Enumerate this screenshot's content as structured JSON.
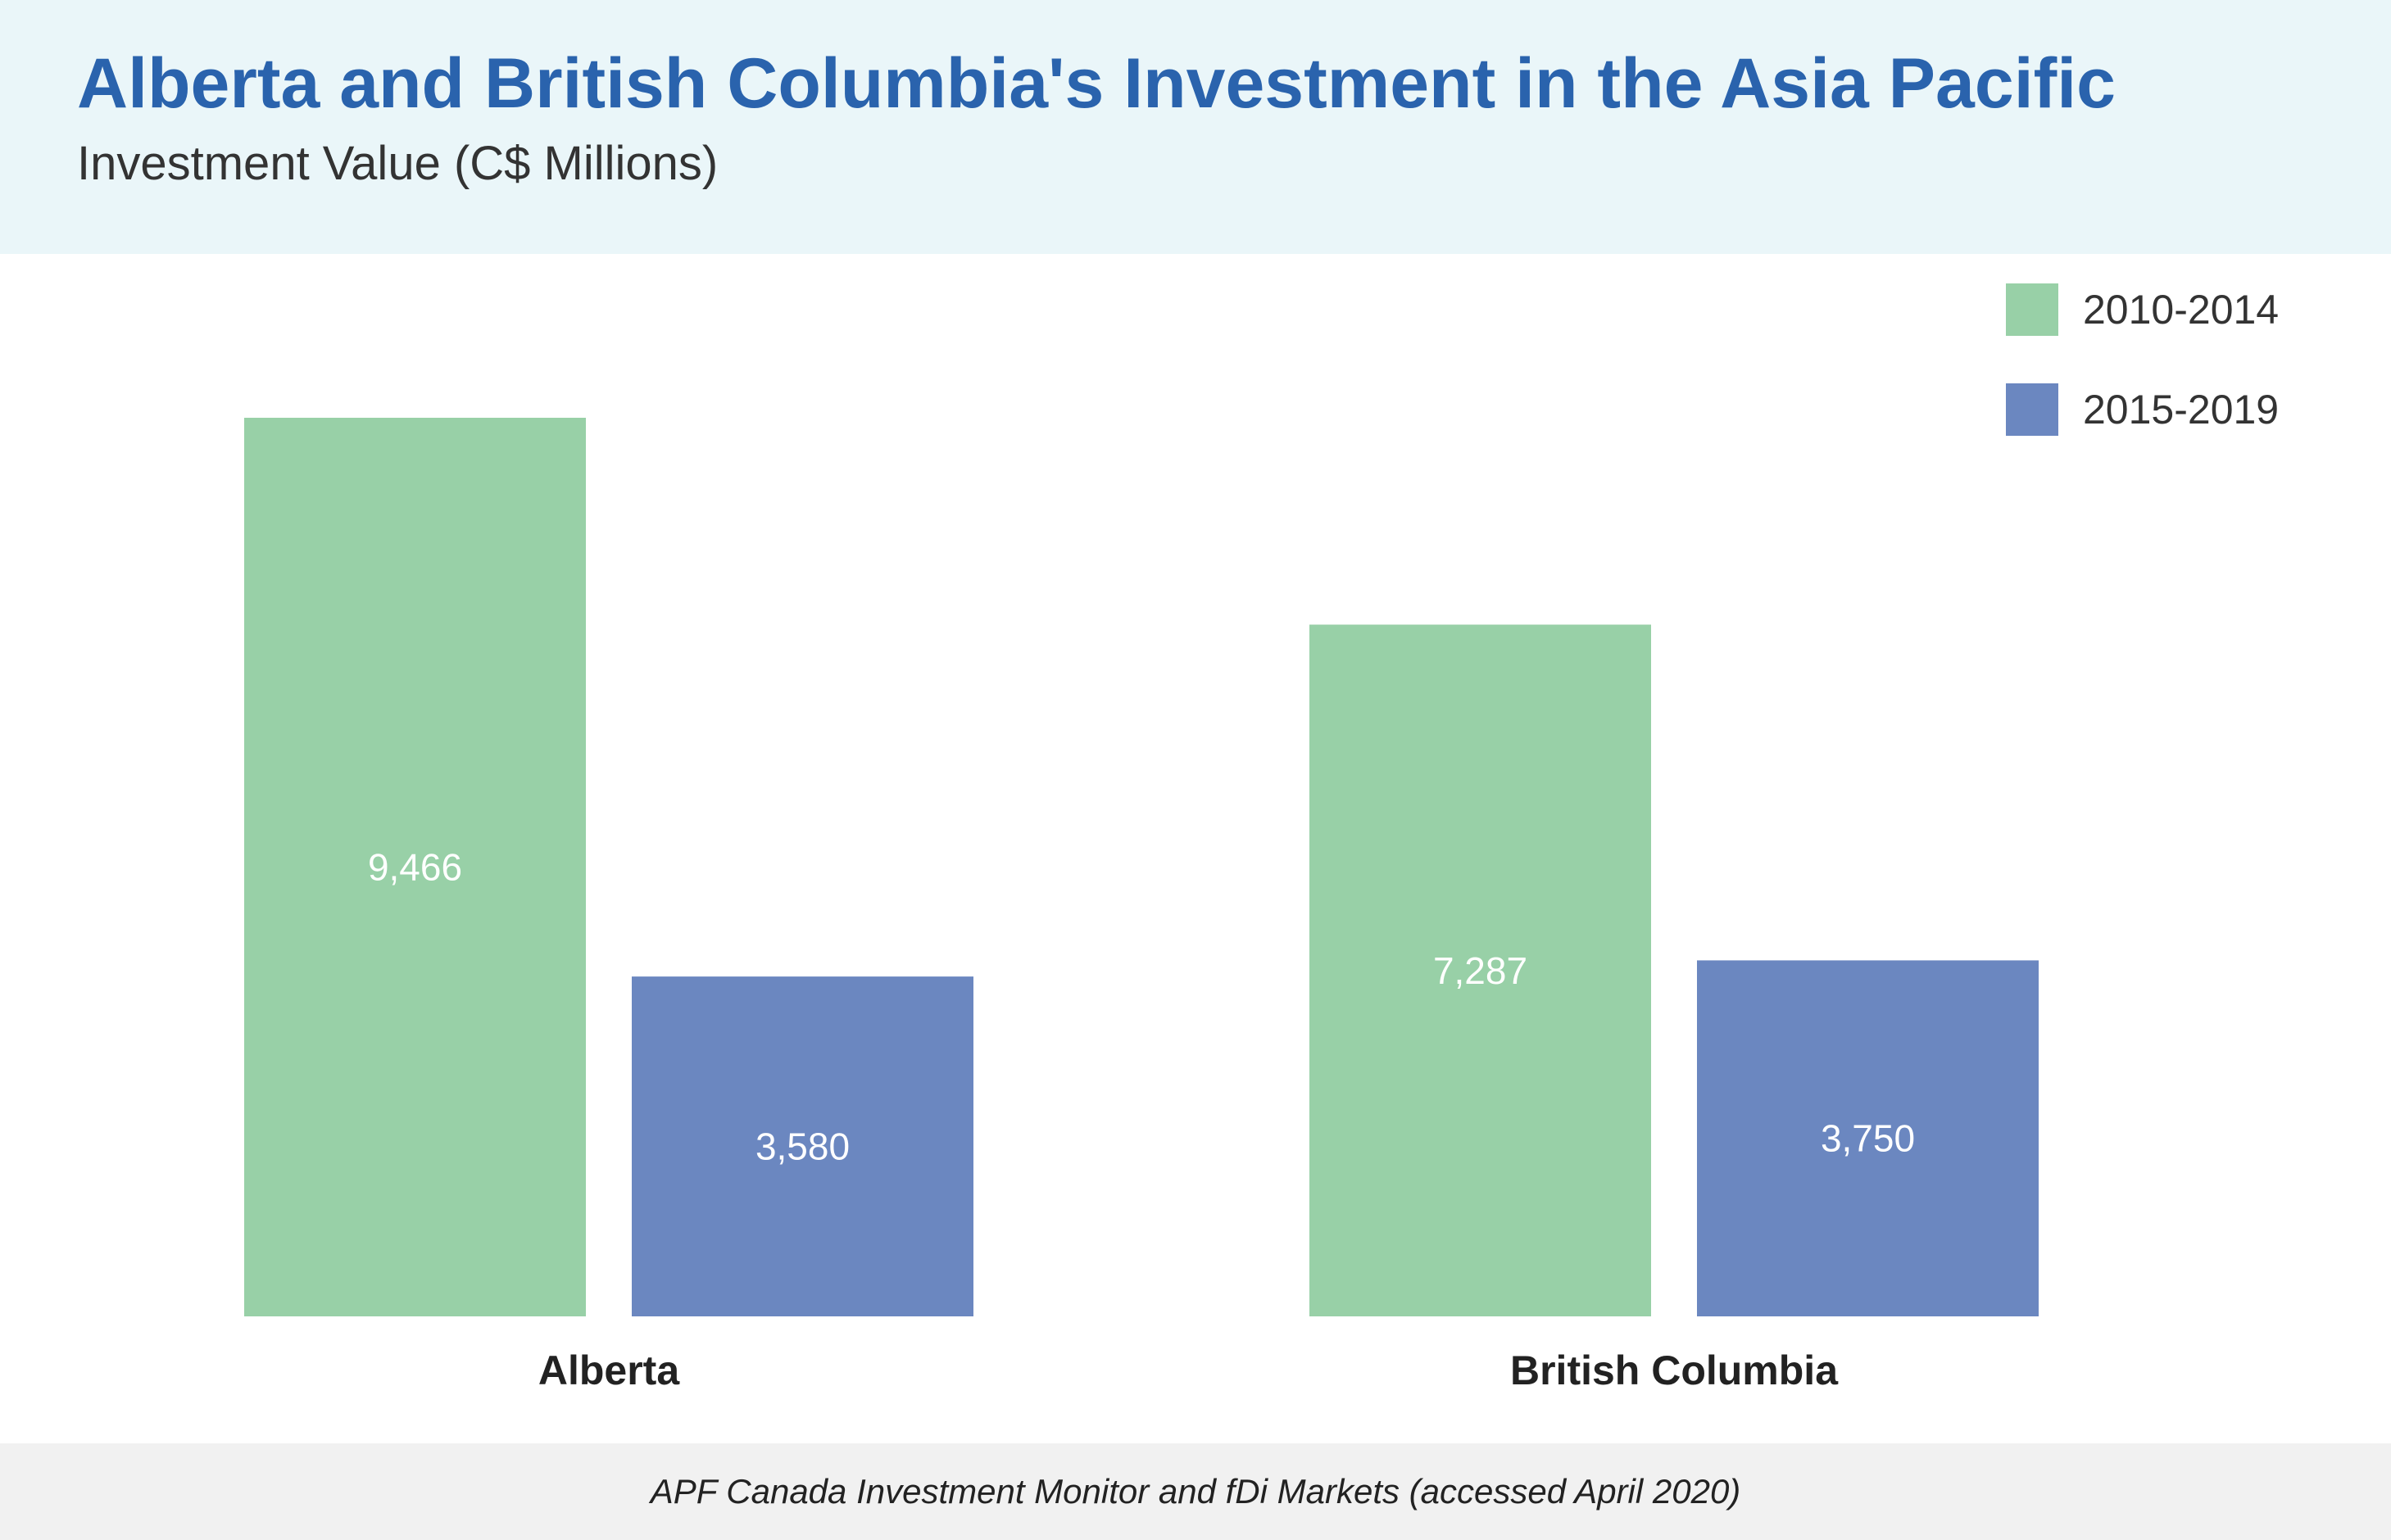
{
  "header": {
    "title": "Alberta and British Columbia's Investment in the Asia Pacific",
    "subtitle": "Investment Value (C$ Millions)"
  },
  "footer": {
    "source": "APF Canada Investment Monitor and fDi Markets (accessed April 2020)"
  },
  "chart_data": {
    "type": "bar",
    "title": "Alberta and British Columbia's Investment in the Asia Pacific",
    "subtitle": "Investment Value (C$ Millions)",
    "xlabel": "",
    "ylabel": "",
    "categories": [
      "Alberta",
      "British Columbia"
    ],
    "series": [
      {
        "name": "2010-2014",
        "color": "#98d0a7",
        "values": [
          9466,
          7287
        ],
        "labels": [
          "9,466",
          "7,287"
        ]
      },
      {
        "name": "2015-2019",
        "color": "#6b87c0",
        "values": [
          3580,
          3750
        ],
        "labels": [
          "3,580",
          "3,750"
        ]
      }
    ],
    "ylim": [
      0,
      9466
    ],
    "grid": false,
    "legend_position": "top-right",
    "data_labels": "inside-center",
    "label_color": "#ffffff"
  }
}
